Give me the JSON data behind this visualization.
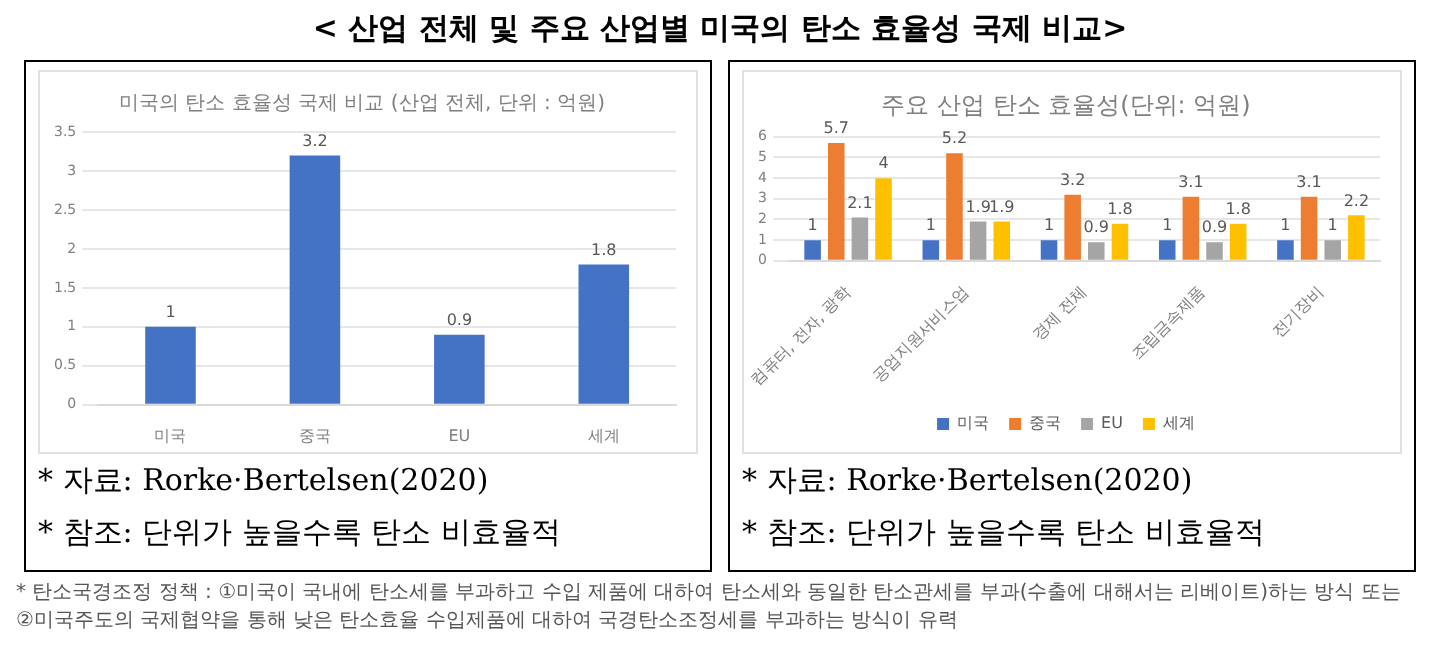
{
  "chart_data": [
    {
      "type": "other",
      "title": "< 산업 전체 및 주요 산업별 미국의 탄소 효율성 국제 비교>"
    },
    {
      "type": "bar",
      "title": "미국의 탄소 효율성 국제 비교 (산업 전체, 단위 : 억원)",
      "categories": [
        "미국",
        "중국",
        "EU",
        "세계"
      ],
      "values": [
        1,
        3.2,
        0.9,
        1.8
      ],
      "color": "#4472c4",
      "ylim": [
        0,
        3.5
      ],
      "yticks": [
        0,
        0.5,
        1,
        1.5,
        2,
        2.5,
        3,
        3.5
      ],
      "grid": "y",
      "data_labels": true,
      "legend": false,
      "annotations": [
        "* 자료: Rorke·Bertelsen(2020)",
        "* 참조: 단위가 높을수록 탄소 비효율적"
      ]
    },
    {
      "type": "bar",
      "title": "주요 산업 탄소 효율성(단위: 억원)",
      "categories": [
        "컴퓨터, 전자, 광학",
        "공업지원서비스업",
        "경제 전체",
        "조립금속제품",
        "전기장비"
      ],
      "series": [
        {
          "name": "미국",
          "color": "#4472c4",
          "values": [
            1,
            1,
            1,
            1,
            1
          ]
        },
        {
          "name": "중국",
          "color": "#ed7d31",
          "values": [
            5.7,
            5.2,
            3.2,
            3.1,
            3.1
          ]
        },
        {
          "name": "EU",
          "color": "#a5a5a5",
          "values": [
            2.1,
            1.9,
            0.9,
            0.9,
            1
          ]
        },
        {
          "name": "세계",
          "color": "#ffc000",
          "values": [
            4,
            1.9,
            1.8,
            1.8,
            2.2
          ]
        }
      ],
      "ylim": [
        0,
        6
      ],
      "yticks": [
        0,
        1,
        2,
        3,
        4,
        5,
        6
      ],
      "grid": "y",
      "data_labels": true,
      "legend": "bottom",
      "annotations": [
        "* 자료: Rorke·Bertelsen(2020)",
        "* 참조: 단위가 높을수록 탄소 비효율적"
      ]
    },
    {
      "type": "other",
      "annotations": [
        "* 탄소국경조정 정책 : ①미국이 국내에 탄소세를 부과하고 수입 제품에 대하여 탄소세와 동일한 탄소관세를 부과(수출에 대해서는 리베이트)하는 방식 또는 ②미국주도의 국제협약을 통해 낮은 탄소효율 수입제품에 대하여 국경탄소조정세를 부과하는 방식이 유력"
      ]
    }
  ]
}
